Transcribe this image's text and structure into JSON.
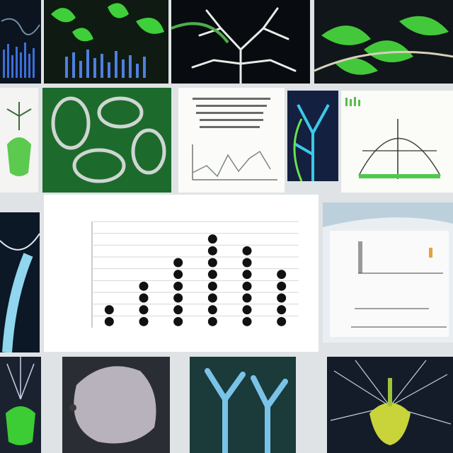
{
  "collage": {
    "tiles": [
      {
        "name": "blue-bars-photo-tile"
      },
      {
        "name": "green-leaves-chart-tile"
      },
      {
        "name": "white-roots-tile"
      },
      {
        "name": "green-leaf-branch-tile"
      },
      {
        "name": "paper-plant-sketch-tile"
      },
      {
        "name": "green-cell-map-tile"
      },
      {
        "name": "paper-line-chart-tile"
      },
      {
        "name": "blue-vein-tile"
      },
      {
        "name": "paper-dome-diagram-tile"
      },
      {
        "name": "blue-stem-photo-tile"
      },
      {
        "name": "annotated-bar-chart-tile"
      },
      {
        "name": "green-sprout-photo-tile"
      },
      {
        "name": "grey-blob-tile"
      },
      {
        "name": "blue-tree-tile"
      },
      {
        "name": "yellow-bulb-tile"
      }
    ]
  },
  "chart_data": {
    "type": "scatter",
    "title": "",
    "subtitle": "",
    "xlabel": "",
    "ylabel": "",
    "categories": [
      "",
      "",
      "",
      "",
      "",
      ""
    ],
    "series": [
      {
        "values": [
          2,
          4,
          6,
          8,
          7,
          5
        ]
      }
    ],
    "ylim": [
      0,
      9
    ],
    "grid": true,
    "marker_color": "#111111"
  }
}
